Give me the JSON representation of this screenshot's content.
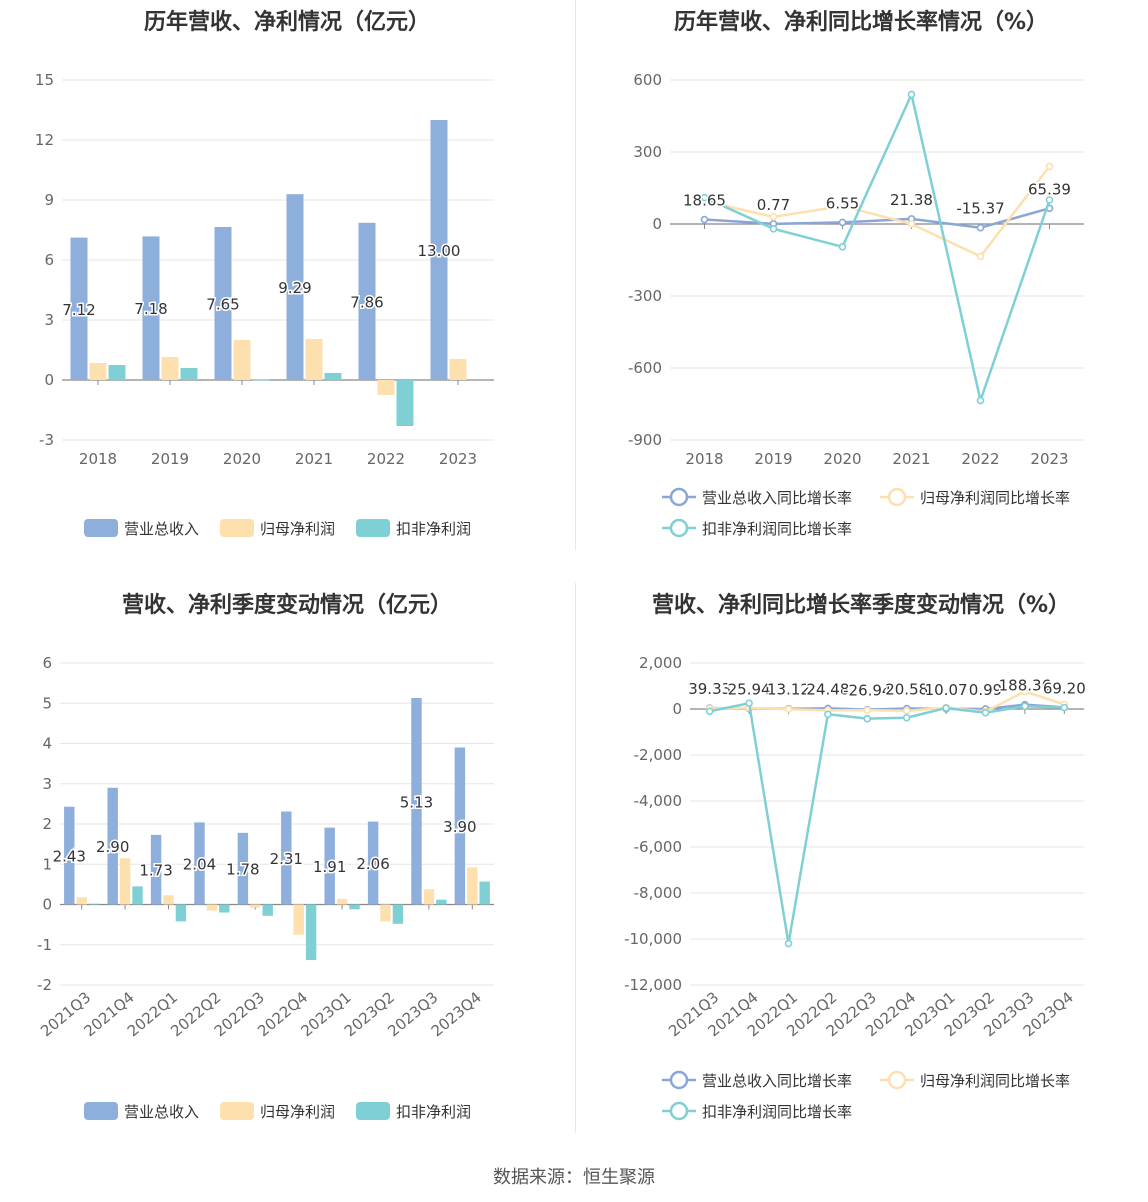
{
  "source": "数据来源：恒生聚源",
  "charts": [
    {
      "type": "bar",
      "title": "历年营收、净利情况（亿元）",
      "categories": [
        "2018",
        "2019",
        "2020",
        "2021",
        "2022",
        "2023"
      ],
      "ylim": [
        -3,
        15
      ],
      "yticks": [
        "-3",
        "0",
        "3",
        "6",
        "9",
        "12",
        "15"
      ],
      "series": [
        {
          "name": "营业总收入",
          "color": "#8eaedc",
          "values": [
            7.12,
            7.18,
            7.65,
            9.29,
            7.86,
            13.0
          ],
          "labels": [
            "7.12",
            "7.18",
            "7.65",
            "9.29",
            "7.86",
            "13.00"
          ]
        },
        {
          "name": "归母净利润",
          "color": "#fde0ad",
          "values": [
            0.85,
            1.15,
            2.0,
            2.05,
            -0.75,
            1.05
          ]
        },
        {
          "name": "扣非净利润",
          "color": "#7fd0d5",
          "values": [
            0.75,
            0.6,
            0.02,
            0.35,
            -2.3,
            0.05
          ]
        }
      ]
    },
    {
      "type": "line",
      "title": "历年营收、净利同比增长率情况（%）",
      "categories": [
        "2018",
        "2019",
        "2020",
        "2021",
        "2022",
        "2023"
      ],
      "ylim": [
        -900,
        600
      ],
      "yticks": [
        "-900",
        "-600",
        "-300",
        "0",
        "300",
        "600"
      ],
      "series": [
        {
          "name": "营业总收入同比增长率",
          "color": "#8aa6d6",
          "values": [
            18.65,
            0.77,
            6.55,
            21.38,
            -15.37,
            65.39
          ],
          "labels": [
            "18.65",
            "0.77",
            "6.55",
            "21.38",
            "-15.37",
            "65.39"
          ]
        },
        {
          "name": "归母净利润同比增长率",
          "color": "#fde0ad",
          "values": [
            95,
            30,
            75,
            0,
            -135,
            240
          ]
        },
        {
          "name": "扣非净利润同比增长率",
          "color": "#7fd0d5",
          "values": [
            110,
            -20,
            -95,
            540,
            -735,
            100
          ]
        }
      ]
    },
    {
      "type": "bar",
      "title": "营收、净利季度变动情况（亿元）",
      "categories": [
        "2021Q3",
        "2021Q4",
        "2022Q1",
        "2022Q2",
        "2022Q3",
        "2022Q4",
        "2023Q1",
        "2023Q2",
        "2023Q3",
        "2023Q4"
      ],
      "ylim": [
        -2,
        6
      ],
      "yticks": [
        "-2",
        "-1",
        "0",
        "1",
        "2",
        "3",
        "4",
        "5",
        "6"
      ],
      "series": [
        {
          "name": "营业总收入",
          "color": "#8eaedc",
          "values": [
            2.43,
            2.9,
            1.73,
            2.04,
            1.78,
            2.31,
            1.91,
            2.06,
            5.13,
            3.9
          ],
          "labels": [
            "2.43",
            "2.90",
            "1.73",
            "2.04",
            "1.78",
            "2.31",
            "1.91",
            "2.06",
            "5.13",
            "3.90"
          ]
        },
        {
          "name": "归母净利润",
          "color": "#fde0ad",
          "values": [
            0.18,
            1.15,
            0.23,
            -0.15,
            -0.08,
            -0.75,
            0.14,
            -0.42,
            0.38,
            0.92
          ]
        },
        {
          "name": "扣非净利润",
          "color": "#7fd0d5",
          "values": [
            0.02,
            0.45,
            -0.42,
            -0.2,
            -0.28,
            -1.38,
            -0.12,
            -0.48,
            0.12,
            0.57
          ]
        }
      ]
    },
    {
      "type": "line",
      "title": "营收、净利同比增长率季度变动情况（%）",
      "categories": [
        "2021Q3",
        "2021Q4",
        "2022Q1",
        "2022Q2",
        "2022Q3",
        "2022Q4",
        "2023Q1",
        "2023Q2",
        "2023Q3",
        "2023Q4"
      ],
      "ylim": [
        -12000,
        2000
      ],
      "yticks": [
        "-12,000",
        "-10,000",
        "-8,000",
        "-6,000",
        "-4,000",
        "-2,000",
        "0",
        "2,000"
      ],
      "series": [
        {
          "name": "营业总收入同比增长率",
          "color": "#8aa6d6",
          "values": [
            39.33,
            25.94,
            13.12,
            24.48,
            -26.94,
            20.58,
            10.07,
            0.99,
            188.36,
            69.2
          ],
          "labels": [
            "39.33",
            "25.94",
            "13.12",
            "24.48",
            "-26.94",
            "20.58",
            "10.07",
            "0.99",
            "188.36",
            "69.20"
          ]
        },
        {
          "name": "归母净利润同比增长率",
          "color": "#fde0ad",
          "values": [
            20,
            50,
            -10,
            -60,
            -50,
            -80,
            60,
            -110,
            760,
            200
          ]
        },
        {
          "name": "扣非净利润同比增长率",
          "color": "#7fd0d5",
          "values": [
            -100,
            250,
            -10200,
            -230,
            -420,
            -380,
            40,
            -160,
            120,
            60
          ]
        }
      ]
    }
  ]
}
